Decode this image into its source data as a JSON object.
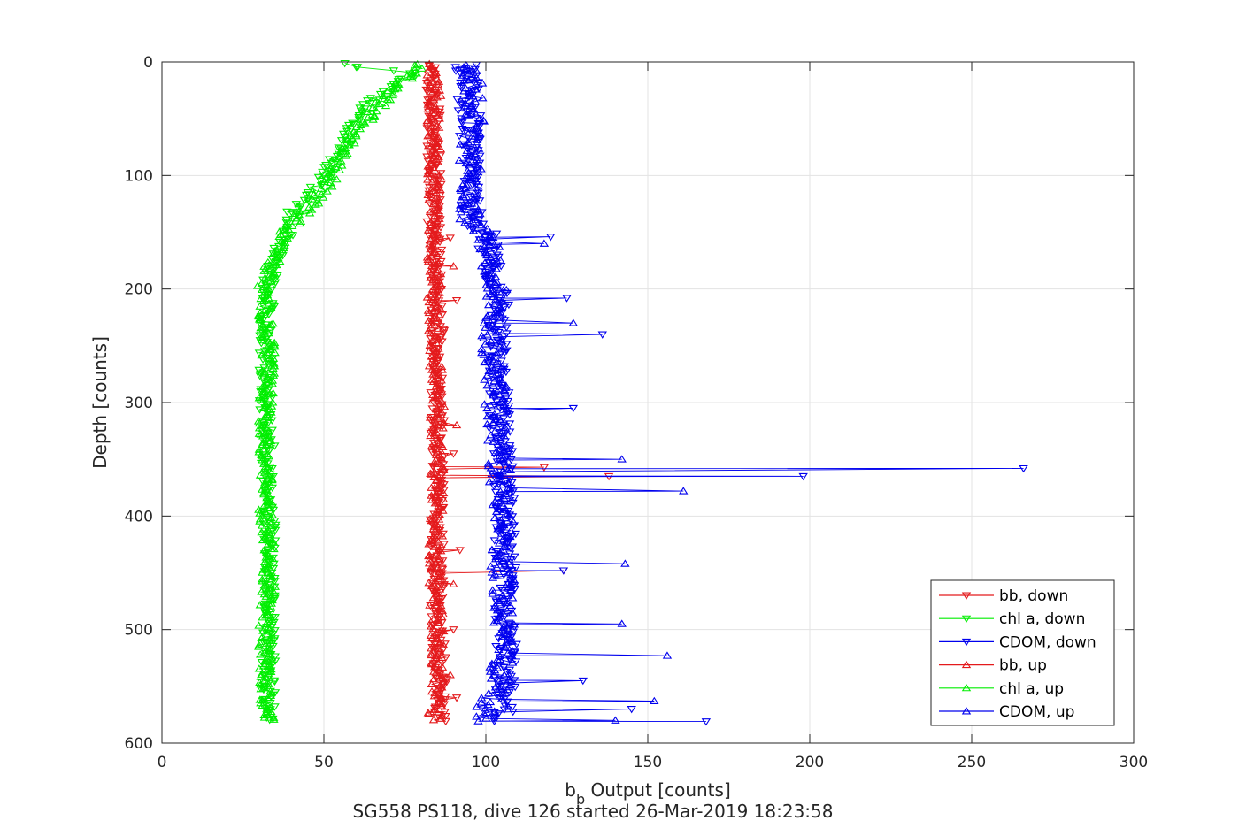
{
  "chart_data": {
    "type": "line",
    "xlabel_main": "b",
    "xlabel_sub": "b",
    "xlabel_rest": " Output [counts]",
    "ylabel": "Depth [counts]",
    "caption": "SG558 PS118, dive 126 started 26-Mar-2019 18:23:58",
    "xlim": [
      0,
      300
    ],
    "ylim": [
      0,
      600
    ],
    "y_reversed": true,
    "grid": true,
    "legend_position": "bottom-right",
    "xticks": [
      "0",
      "50",
      "100",
      "150",
      "200",
      "250",
      "300"
    ],
    "yticks": [
      "0",
      "100",
      "200",
      "300",
      "400",
      "500",
      "600"
    ],
    "series": [
      {
        "name": "bb, down",
        "color": "#e41a1c",
        "marker": "triangle-down",
        "profile": [
          [
            2,
            83
          ],
          [
            50,
            84
          ],
          [
            100,
            84
          ],
          [
            150,
            84
          ],
          [
            200,
            85
          ],
          [
            250,
            85
          ],
          [
            300,
            85
          ],
          [
            350,
            85
          ],
          [
            400,
            85
          ],
          [
            450,
            85
          ],
          [
            500,
            85
          ],
          [
            550,
            86
          ],
          [
            580,
            86
          ]
        ],
        "spread": 2.2,
        "spikes": [
          [
            155,
            89
          ],
          [
            210,
            91
          ],
          [
            345,
            90
          ],
          [
            357,
            118
          ],
          [
            365,
            138
          ],
          [
            430,
            92
          ],
          [
            448,
            124
          ],
          [
            500,
            90
          ],
          [
            560,
            91
          ]
        ]
      },
      {
        "name": "chl a, down",
        "color": "#00ee00",
        "marker": "triangle-down",
        "profile": [
          [
            2,
            55
          ],
          [
            10,
            78
          ],
          [
            40,
            62
          ],
          [
            80,
            55
          ],
          [
            110,
            48
          ],
          [
            130,
            41
          ],
          [
            150,
            39
          ],
          [
            180,
            34
          ],
          [
            200,
            33
          ],
          [
            250,
            32
          ],
          [
            300,
            32
          ],
          [
            350,
            33
          ],
          [
            400,
            33
          ],
          [
            450,
            33
          ],
          [
            500,
            33
          ],
          [
            550,
            33
          ],
          [
            580,
            34
          ]
        ],
        "spread": 2.2,
        "spikes": []
      },
      {
        "name": "CDOM, down",
        "color": "#0000ee",
        "marker": "triangle-down",
        "profile": [
          [
            2,
            94
          ],
          [
            50,
            95
          ],
          [
            100,
            95
          ],
          [
            140,
            96
          ],
          [
            150,
            100
          ],
          [
            200,
            104
          ],
          [
            250,
            103
          ],
          [
            300,
            104
          ],
          [
            350,
            105
          ],
          [
            400,
            106
          ],
          [
            450,
            106
          ],
          [
            500,
            106
          ],
          [
            550,
            106
          ],
          [
            580,
            106
          ]
        ],
        "spread": 3.5,
        "spikes": [
          [
            154,
            120
          ],
          [
            208,
            125
          ],
          [
            240,
            136
          ],
          [
            305,
            127
          ],
          [
            358,
            266
          ],
          [
            365,
            198
          ],
          [
            448,
            124
          ],
          [
            545,
            130
          ],
          [
            570,
            145
          ],
          [
            581,
            168
          ]
        ]
      },
      {
        "name": "bb, up",
        "color": "#e41a1c",
        "marker": "triangle-up",
        "profile": [
          [
            580,
            84
          ],
          [
            550,
            85
          ],
          [
            500,
            85
          ],
          [
            450,
            84
          ],
          [
            400,
            85
          ],
          [
            350,
            85
          ],
          [
            300,
            85
          ],
          [
            250,
            84
          ],
          [
            200,
            84
          ],
          [
            150,
            84
          ],
          [
            100,
            84
          ],
          [
            50,
            84
          ],
          [
            2,
            84
          ]
        ],
        "spread": 2.2,
        "spikes": [
          [
            180,
            90
          ],
          [
            320,
            91
          ],
          [
            460,
            90
          ],
          [
            540,
            89
          ]
        ]
      },
      {
        "name": "chl a, up",
        "color": "#00ee00",
        "marker": "triangle-up",
        "profile": [
          [
            580,
            33
          ],
          [
            550,
            32
          ],
          [
            500,
            32
          ],
          [
            450,
            33
          ],
          [
            400,
            32
          ],
          [
            350,
            32
          ],
          [
            300,
            32
          ],
          [
            250,
            33
          ],
          [
            200,
            31
          ],
          [
            170,
            35
          ],
          [
            150,
            38
          ],
          [
            130,
            45
          ],
          [
            100,
            53
          ],
          [
            60,
            60
          ],
          [
            30,
            70
          ],
          [
            2,
            80
          ]
        ],
        "spread": 2.2,
        "spikes": []
      },
      {
        "name": "CDOM, up",
        "color": "#0000ee",
        "marker": "triangle-up",
        "profile": [
          [
            580,
            98
          ],
          [
            550,
            104
          ],
          [
            500,
            106
          ],
          [
            450,
            105
          ],
          [
            400,
            105
          ],
          [
            350,
            104
          ],
          [
            300,
            103
          ],
          [
            250,
            102
          ],
          [
            200,
            103
          ],
          [
            150,
            100
          ],
          [
            140,
            95
          ],
          [
            100,
            95
          ],
          [
            50,
            96
          ],
          [
            2,
            96
          ]
        ],
        "spread": 3.5,
        "spikes": [
          [
            160,
            118
          ],
          [
            230,
            127
          ],
          [
            350,
            142
          ],
          [
            378,
            161
          ],
          [
            442,
            143
          ],
          [
            495,
            142
          ],
          [
            523,
            156
          ],
          [
            563,
            152
          ],
          [
            580,
            140
          ]
        ]
      }
    ]
  }
}
